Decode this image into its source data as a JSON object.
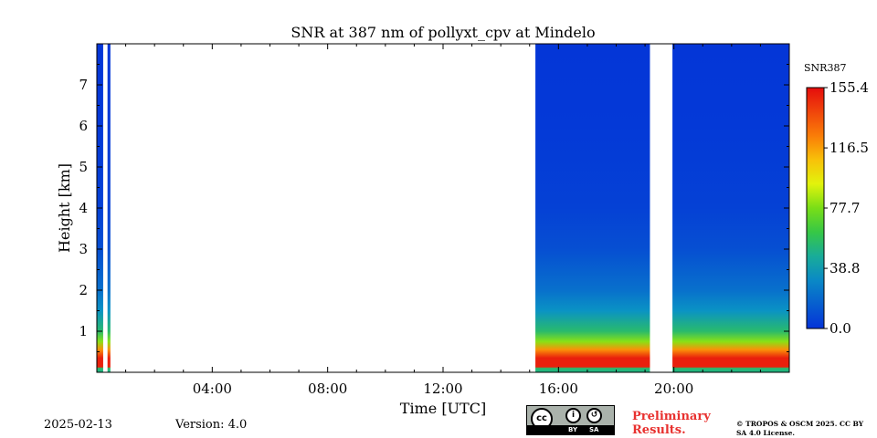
{
  "chart_data": {
    "type": "heatmap",
    "title": "SNR at 387 nm of pollyxt_cpv at Mindelo",
    "xlabel": "Time [UTC]",
    "ylabel": "Height [km]",
    "xlim_hours": [
      0,
      24
    ],
    "ylim_km": [
      0,
      8
    ],
    "x_ticks": [
      {
        "hour": 4,
        "label": "04:00"
      },
      {
        "hour": 8,
        "label": "08:00"
      },
      {
        "hour": 12,
        "label": "12:00"
      },
      {
        "hour": 16,
        "label": "16:00"
      },
      {
        "hour": 20,
        "label": "20:00"
      }
    ],
    "y_ticks": [
      {
        "km": 1,
        "label": "1"
      },
      {
        "km": 2,
        "label": "2"
      },
      {
        "km": 3,
        "label": "3"
      },
      {
        "km": 4,
        "label": "4"
      },
      {
        "km": 5,
        "label": "5"
      },
      {
        "km": 6,
        "label": "6"
      },
      {
        "km": 7,
        "label": "7"
      }
    ],
    "colorbar": {
      "label": "SNR387",
      "min": 0.0,
      "max": 155.4,
      "ticks": [
        {
          "value": 0.0,
          "label": "0.0"
        },
        {
          "value": 38.8,
          "label": "38.8"
        },
        {
          "value": 77.7,
          "label": "77.7"
        },
        {
          "value": 116.5,
          "label": "116.5"
        },
        {
          "value": 155.4,
          "label": "155.4"
        }
      ]
    },
    "data_segments": [
      {
        "start_hour": 0.0,
        "end_hour": 0.22
      },
      {
        "start_hour": 0.37,
        "end_hour": 0.47
      },
      {
        "start_hour": 15.2,
        "end_hour": 19.17
      },
      {
        "start_hour": 19.95,
        "end_hour": 24.0
      }
    ],
    "snr_profile": [
      {
        "km": 0.0,
        "snr": 50
      },
      {
        "km": 0.1,
        "snr": 55
      },
      {
        "km": 0.13,
        "snr": 150
      },
      {
        "km": 0.35,
        "snr": 150
      },
      {
        "km": 0.55,
        "snr": 120
      },
      {
        "km": 0.75,
        "snr": 80
      },
      {
        "km": 1.0,
        "snr": 55
      },
      {
        "km": 1.5,
        "snr": 35
      },
      {
        "km": 2.0,
        "snr": 22
      },
      {
        "km": 3.0,
        "snr": 10
      },
      {
        "km": 4.0,
        "snr": 5
      },
      {
        "km": 6.0,
        "snr": 2
      },
      {
        "km": 8.0,
        "snr": 1
      }
    ]
  },
  "footer": {
    "date": "2025-02-13",
    "version": "Version: 4.0",
    "preliminary": "Preliminary Results.",
    "copyright": "© TROPOS & OSCM 2025. CC BY SA 4.0 License.",
    "badge_by": "BY",
    "badge_sa": "SA",
    "badge_cc": "cc"
  }
}
